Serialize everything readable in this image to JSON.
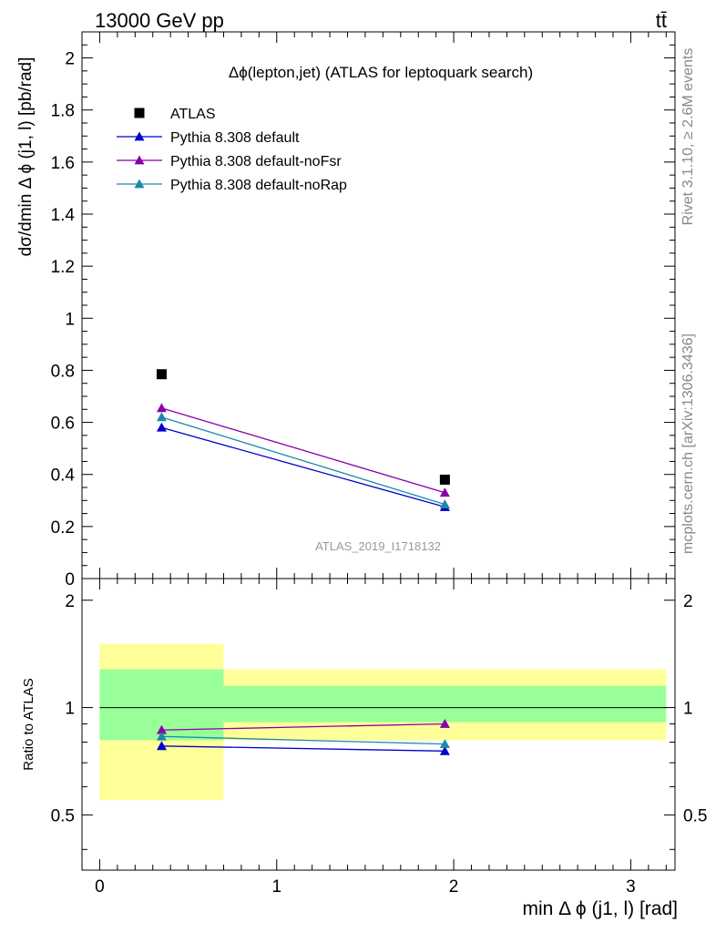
{
  "header": {
    "energy": "13000 GeV pp",
    "process": "tt̄",
    "side_top": "Rivet 3.1.10, ≥ 2.6M events",
    "side_bottom": "mcplots.cern.ch [arXiv:1306.3436]"
  },
  "chart_data": [
    {
      "type": "scatter",
      "title": "Δϕ(lepton,jet) (ATLAS for leptoquark search)",
      "ylabel": "dσ/dmin Δ ϕ (j1, l) [pb/rad]",
      "watermark": "ATLAS_2019_I1718132",
      "xlim": [
        -0.1,
        3.25
      ],
      "ylim": [
        0,
        2.1
      ],
      "ytick_labels": [
        "0",
        "0.2",
        "0.4",
        "0.6",
        "0.8",
        "1",
        "1.2",
        "1.4",
        "1.6",
        "1.8",
        "2"
      ],
      "ytick_values": [
        0,
        0.2,
        0.4,
        0.6,
        0.8,
        1,
        1.2,
        1.4,
        1.6,
        1.8,
        2
      ],
      "legend_position": "top-left",
      "legend": [
        "ATLAS",
        "Pythia 8.308 default",
        "Pythia 8.308 default-noFsr",
        "Pythia 8.308 default-noRap"
      ],
      "data": {
        "name": "ATLAS",
        "color": "#000000",
        "x": [
          0.35,
          1.95
        ],
        "y": [
          0.785,
          0.38
        ]
      },
      "series": [
        {
          "name": "Pythia 8.308 default",
          "color": "#0000cc",
          "x": [
            0.35,
            1.95
          ],
          "y": [
            0.58,
            0.275
          ]
        },
        {
          "name": "Pythia 8.308 default-noFsr",
          "color": "#8a00aa",
          "x": [
            0.35,
            1.95
          ],
          "y": [
            0.655,
            0.33
          ]
        },
        {
          "name": "Pythia 8.308 default-noRap",
          "color": "#1a8aa8",
          "x": [
            0.35,
            1.95
          ],
          "y": [
            0.62,
            0.285
          ]
        }
      ]
    },
    {
      "type": "line",
      "ylabel": "Ratio to ATLAS",
      "xlabel": "min Δ ϕ (j1, l) [rad]",
      "xlim": [
        -0.1,
        3.25
      ],
      "ylim": [
        0.35,
        2.3
      ],
      "xtick_labels": [
        "0",
        "1",
        "2",
        "3"
      ],
      "xtick_values": [
        0,
        1,
        2,
        3
      ],
      "ytick_labels": [
        "0.5",
        "1",
        "2"
      ],
      "ytick_values": [
        0.5,
        1,
        2
      ],
      "bands": [
        {
          "x": [
            0,
            0.7
          ],
          "yellow": [
            0.55,
            1.51
          ],
          "green": [
            0.81,
            1.28
          ]
        },
        {
          "x": [
            0.7,
            3.2
          ],
          "yellow": [
            0.81,
            1.28
          ],
          "green": [
            0.91,
            1.15
          ]
        }
      ],
      "band_colors": {
        "yellow": "#ffff99",
        "green": "#99ff99"
      },
      "series": [
        {
          "name": "Pythia 8.308 default",
          "color": "#0000cc",
          "x": [
            0.35,
            1.95
          ],
          "y": [
            0.78,
            0.755
          ]
        },
        {
          "name": "Pythia 8.308 default-noFsr",
          "color": "#8a00aa",
          "x": [
            0.35,
            1.95
          ],
          "y": [
            0.865,
            0.9
          ]
        },
        {
          "name": "Pythia 8.308 default-noRap",
          "color": "#1a8aa8",
          "x": [
            0.35,
            1.95
          ],
          "y": [
            0.83,
            0.79
          ]
        }
      ]
    }
  ]
}
